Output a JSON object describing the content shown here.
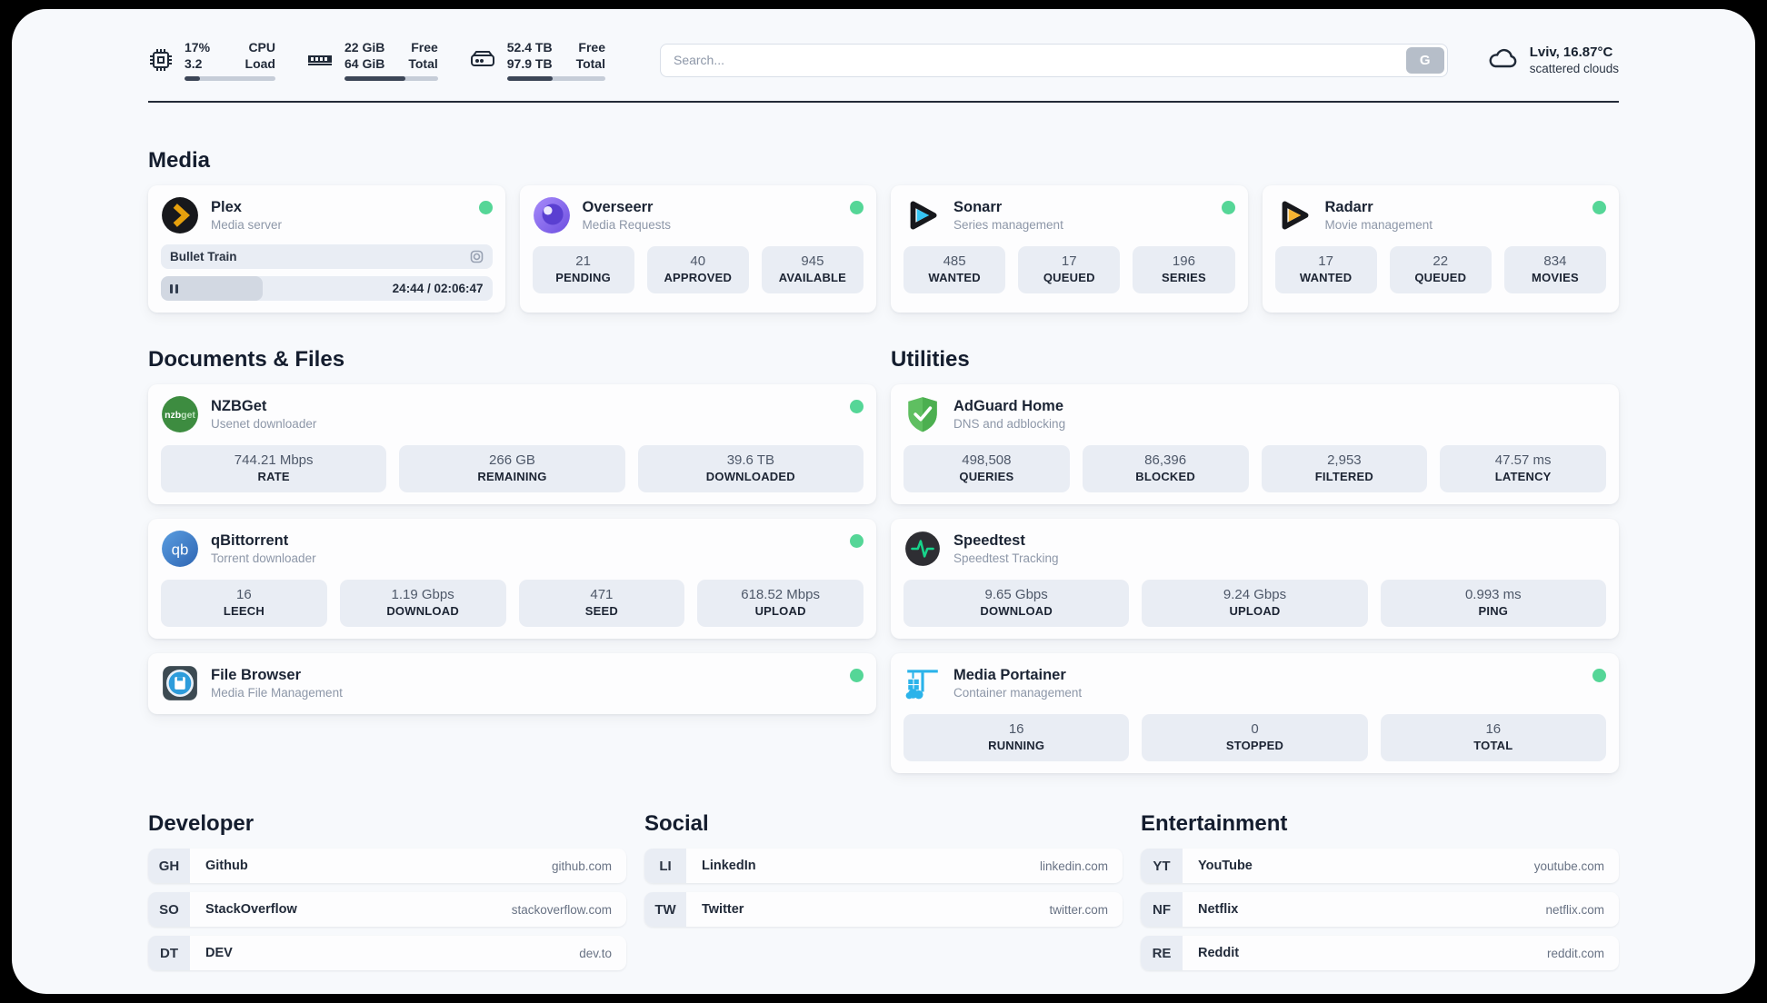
{
  "header": {
    "cpu": {
      "value1": "17%",
      "value2": "3.2",
      "label1": "CPU",
      "label2": "Load",
      "progress": 17
    },
    "ram": {
      "value1": "22 GiB",
      "value2": "64 GiB",
      "label1": "Free",
      "label2": "Total",
      "progress": 65
    },
    "disk": {
      "value1": "52.4 TB",
      "value2": "97.9 TB",
      "label1": "Free",
      "label2": "Total",
      "progress": 46
    },
    "search": {
      "placeholder": "Search...",
      "button_label": "G"
    },
    "weather": {
      "location_temp": "Lviv, 16.87°C",
      "condition": "scattered clouds"
    }
  },
  "sections": {
    "media": {
      "title": "Media",
      "apps": [
        {
          "name": "Plex",
          "desc": "Media server",
          "media": {
            "now_playing": "Bullet Train",
            "time": "24:44 / 02:06:47"
          }
        },
        {
          "name": "Overseerr",
          "desc": "Media Requests",
          "stats": [
            {
              "value": "21",
              "label": "PENDING"
            },
            {
              "value": "40",
              "label": "APPROVED"
            },
            {
              "value": "945",
              "label": "AVAILABLE"
            }
          ]
        },
        {
          "name": "Sonarr",
          "desc": "Series management",
          "stats": [
            {
              "value": "485",
              "label": "WANTED"
            },
            {
              "value": "17",
              "label": "QUEUED"
            },
            {
              "value": "196",
              "label": "SERIES"
            }
          ]
        },
        {
          "name": "Radarr",
          "desc": "Movie management",
          "stats": [
            {
              "value": "17",
              "label": "WANTED"
            },
            {
              "value": "22",
              "label": "QUEUED"
            },
            {
              "value": "834",
              "label": "MOVIES"
            }
          ]
        }
      ]
    },
    "documents": {
      "title": "Documents & Files",
      "apps": [
        {
          "name": "NZBGet",
          "desc": "Usenet downloader",
          "stats": [
            {
              "value": "744.21 Mbps",
              "label": "RATE"
            },
            {
              "value": "266 GB",
              "label": "REMAINING"
            },
            {
              "value": "39.6 TB",
              "label": "DOWNLOADED"
            }
          ]
        },
        {
          "name": "qBittorrent",
          "desc": "Torrent downloader",
          "stats": [
            {
              "value": "16",
              "label": "LEECH"
            },
            {
              "value": "1.19 Gbps",
              "label": "DOWNLOAD"
            },
            {
              "value": "471",
              "label": "SEED"
            },
            {
              "value": "618.52 Mbps",
              "label": "UPLOAD"
            }
          ]
        },
        {
          "name": "File Browser",
          "desc": "Media File Management"
        }
      ]
    },
    "utilities": {
      "title": "Utilities",
      "apps": [
        {
          "name": "AdGuard Home",
          "desc": "DNS and adblocking",
          "stats": [
            {
              "value": "498,508",
              "label": "QUERIES"
            },
            {
              "value": "86,396",
              "label": "BLOCKED"
            },
            {
              "value": "2,953",
              "label": "FILTERED"
            },
            {
              "value": "47.57 ms",
              "label": "LATENCY"
            }
          ]
        },
        {
          "name": "Speedtest",
          "desc": "Speedtest Tracking",
          "stats": [
            {
              "value": "9.65 Gbps",
              "label": "DOWNLOAD"
            },
            {
              "value": "9.24 Gbps",
              "label": "UPLOAD"
            },
            {
              "value": "0.993 ms",
              "label": "PING"
            }
          ]
        },
        {
          "name": "Media Portainer",
          "desc": "Container management",
          "stats": [
            {
              "value": "16",
              "label": "RUNNING"
            },
            {
              "value": "0",
              "label": "STOPPED"
            },
            {
              "value": "16",
              "label": "TOTAL"
            }
          ]
        }
      ]
    }
  },
  "links": {
    "developer": {
      "title": "Developer",
      "items": [
        {
          "abbr": "GH",
          "name": "Github",
          "url": "github.com"
        },
        {
          "abbr": "SO",
          "name": "StackOverflow",
          "url": "stackoverflow.com"
        },
        {
          "abbr": "DT",
          "name": "DEV",
          "url": "dev.to"
        }
      ]
    },
    "social": {
      "title": "Social",
      "items": [
        {
          "abbr": "LI",
          "name": "LinkedIn",
          "url": "linkedin.com"
        },
        {
          "abbr": "TW",
          "name": "Twitter",
          "url": "twitter.com"
        }
      ]
    },
    "entertainment": {
      "title": "Entertainment",
      "items": [
        {
          "abbr": "YT",
          "name": "YouTube",
          "url": "youtube.com"
        },
        {
          "abbr": "NF",
          "name": "Netflix",
          "url": "netflix.com"
        },
        {
          "abbr": "RE",
          "name": "Reddit",
          "url": "reddit.com"
        }
      ]
    }
  },
  "colors": {
    "accent_green": "#55d697",
    "progress_fill": "#3c4657",
    "stat_bg": "#e9edf4"
  }
}
